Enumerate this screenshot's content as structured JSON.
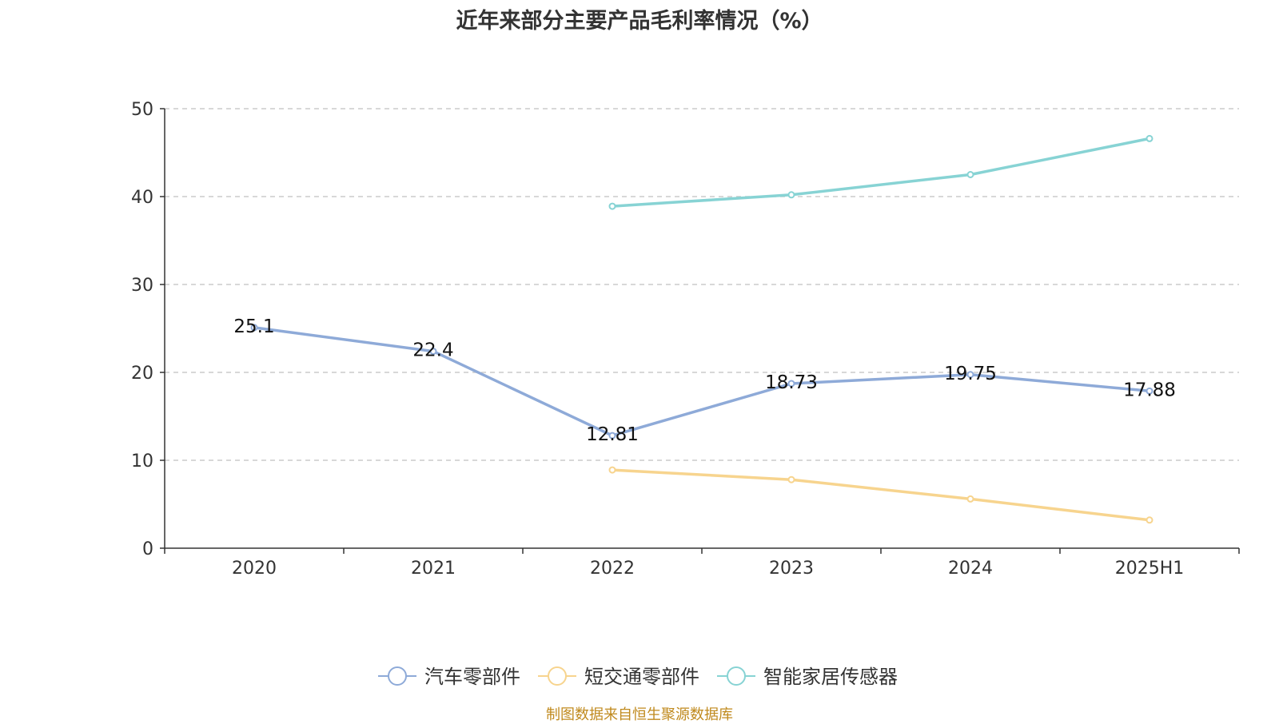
{
  "chart_data": {
    "type": "line",
    "title": "近年来部分主要产品毛利率情况（%）",
    "categories": [
      "2020",
      "2021",
      "2022",
      "2023",
      "2024",
      "2025H1"
    ],
    "ylim": [
      0,
      50
    ],
    "yticks": [
      0,
      10,
      20,
      30,
      40,
      50
    ],
    "grid": true,
    "legend_position": "bottom",
    "series": [
      {
        "name": "汽车零部件",
        "color": "#8eaad8",
        "values": [
          25.1,
          22.4,
          12.81,
          18.73,
          19.75,
          17.88
        ],
        "labels": [
          "25.1",
          "22.4",
          "12.81",
          "18.73",
          "19.75",
          "17.88"
        ]
      },
      {
        "name": "短交通零部件",
        "color": "#f7d48e",
        "values": [
          null,
          null,
          8.9,
          7.8,
          5.6,
          3.2
        ]
      },
      {
        "name": "智能家居传感器",
        "color": "#87d3d4",
        "values": [
          null,
          null,
          38.9,
          40.2,
          42.5,
          46.6
        ]
      }
    ]
  },
  "source_note": "制图数据来自恒生聚源数据库"
}
